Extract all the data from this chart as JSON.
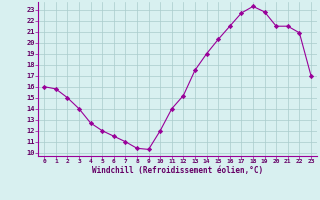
{
  "x": [
    0,
    1,
    2,
    3,
    4,
    5,
    6,
    7,
    8,
    9,
    10,
    11,
    12,
    13,
    14,
    15,
    16,
    17,
    18,
    19,
    20,
    21,
    22,
    23
  ],
  "y": [
    16.0,
    15.8,
    15.0,
    14.0,
    12.7,
    12.0,
    11.5,
    11.0,
    10.4,
    10.3,
    12.0,
    14.0,
    15.2,
    17.5,
    19.0,
    20.3,
    21.5,
    22.7,
    23.3,
    22.8,
    21.5,
    21.5,
    20.9,
    17.0
  ],
  "line_color": "#990099",
  "marker": "D",
  "marker_size": 2.2,
  "bg_color": "#d8f0f0",
  "grid_color": "#aacccc",
  "xlabel": "Windchill (Refroidissement éolien,°C)",
  "xlim": [
    -0.5,
    23.5
  ],
  "ylim": [
    9.7,
    23.7
  ],
  "yticks": [
    10,
    11,
    12,
    13,
    14,
    15,
    16,
    17,
    18,
    19,
    20,
    21,
    22,
    23
  ],
  "xticks": [
    0,
    1,
    2,
    3,
    4,
    5,
    6,
    7,
    8,
    9,
    10,
    11,
    12,
    13,
    14,
    15,
    16,
    17,
    18,
    19,
    20,
    21,
    22,
    23
  ],
  "tick_color": "#990099",
  "label_color": "#660066",
  "spine_color": "#990099"
}
